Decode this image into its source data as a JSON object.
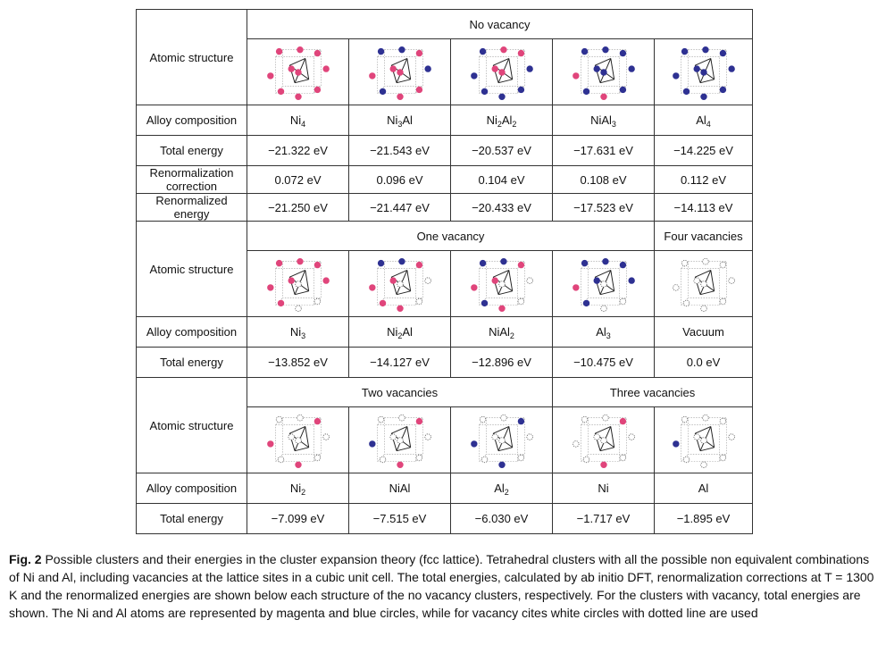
{
  "colors": {
    "ni": "#e0457b",
    "al": "#2e3192",
    "vacancy": "#ffffff",
    "border": "#333333"
  },
  "row_labels": {
    "atomic_structure": "Atomic structure",
    "alloy_composition": "Alloy composition",
    "total_energy": "Total energy",
    "renorm_correction": "Renormalization correction",
    "renorm_energy": "Renormalized energy"
  },
  "sections": {
    "no_vacancy": {
      "title": "No vacancy",
      "compositions": [
        "Ni4",
        "Ni3Al",
        "Ni2Al2",
        "NiAl3",
        "Al4"
      ],
      "total_energy": [
        "−21.322 eV",
        "−21.543 eV",
        "−20.537 eV",
        "−17.631 eV",
        "−14.225 eV"
      ],
      "renorm_correction": [
        "0.072 eV",
        "0.096 eV",
        "0.104 eV",
        "0.108 eV",
        "0.112 eV"
      ],
      "renorm_energy": [
        "−21.250 eV",
        "−21.447 eV",
        "−20.433 eV",
        "−17.523 eV",
        "−14.113 eV"
      ]
    },
    "one_vacancy": {
      "title": "One vacancy",
      "four_title": "Four vacancies",
      "compositions": [
        "Ni3",
        "Ni2Al",
        "NiAl2",
        "Al3",
        "Vacuum"
      ],
      "total_energy": [
        "−13.852 eV",
        "−14.127 eV",
        "−12.896 eV",
        "−10.475 eV",
        "0.0 eV"
      ]
    },
    "two_three_vacancies": {
      "two_title": "Two vacancies",
      "three_title": "Three vacancies",
      "compositions": [
        "Ni2",
        "NiAl",
        "Al2",
        "Ni",
        "Al"
      ],
      "total_energy": [
        "−7.099 eV",
        "−7.515 eV",
        "−6.030 eV",
        "−1.717 eV",
        "−1.895 eV"
      ]
    }
  },
  "caption": {
    "label": "Fig. 2",
    "text": " Possible clusters and their energies in the cluster expansion theory (fcc lattice). Tetrahedral clusters with all the possible non equivalent combinations of Ni and Al, including vacancies at the lattice sites in a cubic unit cell. The total energies, calculated by ab initio DFT, renormalization corrections at T = 1300 K and the renormalized energies are shown below each structure of the no vacancy clusters, respectively. For the clusters with vacancy, total energies are shown. The Ni and Al atoms are represented by magenta and blue circles, while for vacancy cites white circles with dotted line are used"
  }
}
